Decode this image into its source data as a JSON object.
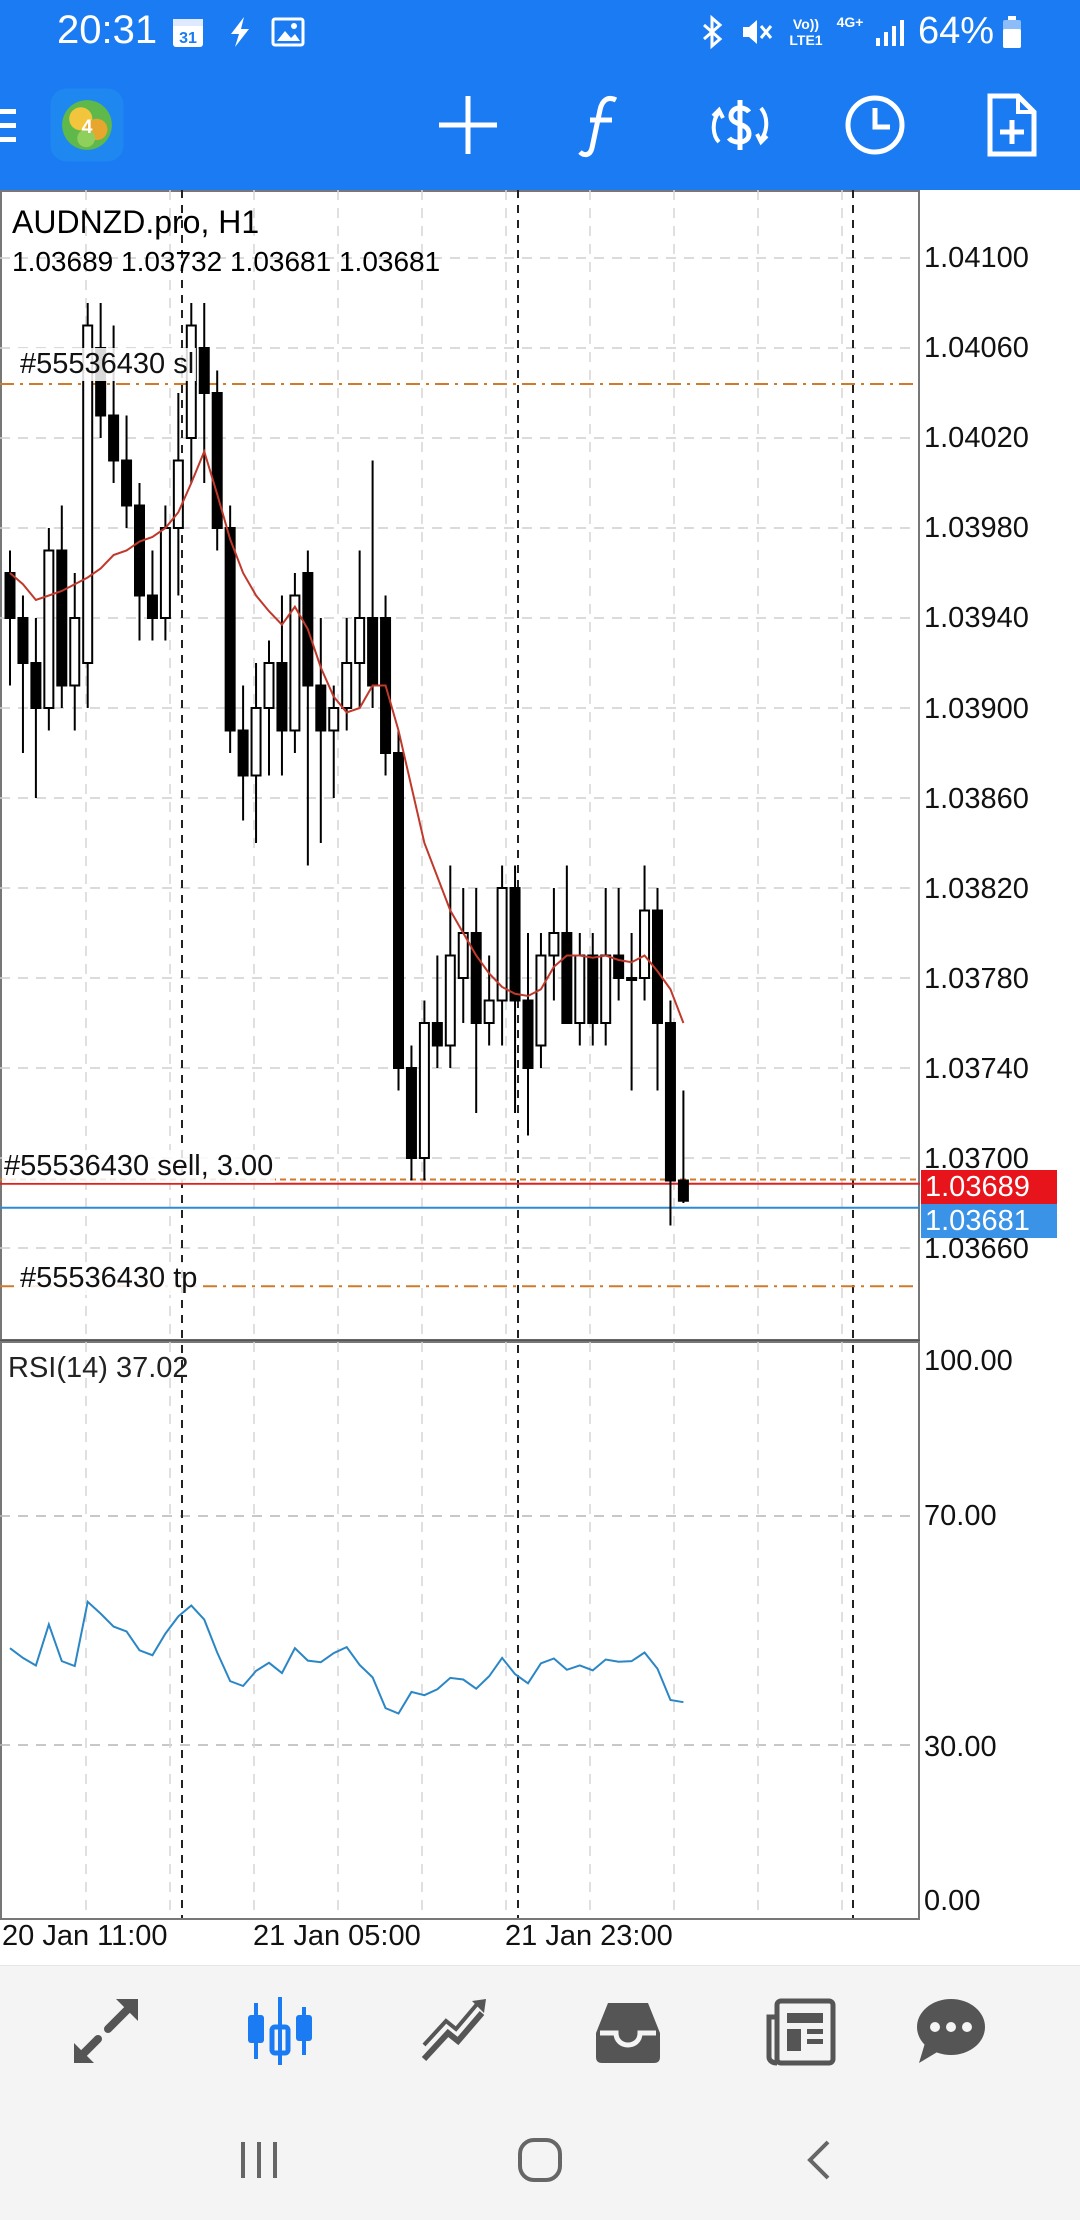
{
  "status_bar": {
    "time": "20:31",
    "calendar_day": "31",
    "volte_label": "Vo)) LTE1",
    "network_label": "4G+",
    "battery_percent": "64%",
    "icons": [
      "calendar-icon",
      "flash-icon",
      "image-icon",
      "bluetooth-icon",
      "mute-icon",
      "signal-icon",
      "battery-icon"
    ]
  },
  "toolbar": {
    "buttons": [
      "menu",
      "crosshair",
      "indicators",
      "trade",
      "timeframe",
      "new-order"
    ]
  },
  "chart": {
    "symbol": "AUDNZD.pro, H1",
    "ohlc": "1.03689 1.03732 1.03681 1.03681",
    "price_axis": [
      "1.04100",
      "1.04060",
      "1.04020",
      "1.03980",
      "1.03940",
      "1.03900",
      "1.03860",
      "1.03820",
      "1.03780",
      "1.03740",
      "1.03700",
      "1.03660"
    ],
    "bid_tag": "1.03689",
    "ask_tag": "1.03681",
    "trade_labels": {
      "sl": "#55536430 sl",
      "entry": "#55536430 sell, 3.00",
      "tp": "#55536430 tp"
    },
    "rsi_title": "RSI(14) 37.02",
    "rsi_axis": [
      "100.00",
      "70.00",
      "30.00",
      "0.00"
    ],
    "time_axis": [
      "20 Jan 11:00",
      "21 Jan 05:00",
      "21 Jan 23:00"
    ],
    "colors": {
      "bid_line": "#e02020",
      "ask_line": "#2f8ad6",
      "ma": "#c0392b",
      "rsi": "#2b86c5",
      "order_lines": "#d07a2b"
    }
  },
  "chart_data": {
    "type": "candlestick",
    "title": "AUDNZD.pro, H1",
    "ylim": [
      1.0363,
      1.0412
    ],
    "candles": [
      {
        "o": 1.0396,
        "h": 1.0397,
        "l": 1.0391,
        "c": 1.0394
      },
      {
        "o": 1.0394,
        "h": 1.0395,
        "l": 1.0388,
        "c": 1.0392
      },
      {
        "o": 1.0392,
        "h": 1.0394,
        "l": 1.0386,
        "c": 1.039
      },
      {
        "o": 1.039,
        "h": 1.0398,
        "l": 1.0389,
        "c": 1.0397
      },
      {
        "o": 1.0397,
        "h": 1.0399,
        "l": 1.039,
        "c": 1.0391
      },
      {
        "o": 1.0391,
        "h": 1.0396,
        "l": 1.0389,
        "c": 1.0394
      },
      {
        "o": 1.0392,
        "h": 1.0408,
        "l": 1.039,
        "c": 1.0407
      },
      {
        "o": 1.0406,
        "h": 1.0408,
        "l": 1.0402,
        "c": 1.0403
      },
      {
        "o": 1.0403,
        "h": 1.0407,
        "l": 1.04,
        "c": 1.0401
      },
      {
        "o": 1.0401,
        "h": 1.0403,
        "l": 1.0398,
        "c": 1.0399
      },
      {
        "o": 1.0399,
        "h": 1.04,
        "l": 1.0393,
        "c": 1.0395
      },
      {
        "o": 1.0395,
        "h": 1.0397,
        "l": 1.0393,
        "c": 1.0394
      },
      {
        "o": 1.0394,
        "h": 1.0399,
        "l": 1.0393,
        "c": 1.0398
      },
      {
        "o": 1.0398,
        "h": 1.0404,
        "l": 1.0395,
        "c": 1.0401
      },
      {
        "o": 1.0402,
        "h": 1.0408,
        "l": 1.04,
        "c": 1.0407
      },
      {
        "o": 1.0406,
        "h": 1.0408,
        "l": 1.04,
        "c": 1.0404
      },
      {
        "o": 1.0404,
        "h": 1.0405,
        "l": 1.0397,
        "c": 1.0398
      },
      {
        "o": 1.0398,
        "h": 1.0399,
        "l": 1.0388,
        "c": 1.0389
      },
      {
        "o": 1.0389,
        "h": 1.0391,
        "l": 1.0385,
        "c": 1.0387
      },
      {
        "o": 1.0387,
        "h": 1.0392,
        "l": 1.0384,
        "c": 1.039
      },
      {
        "o": 1.039,
        "h": 1.0393,
        "l": 1.0387,
        "c": 1.0392
      },
      {
        "o": 1.0392,
        "h": 1.0395,
        "l": 1.0387,
        "c": 1.0389
      },
      {
        "o": 1.0389,
        "h": 1.0396,
        "l": 1.0388,
        "c": 1.0395
      },
      {
        "o": 1.0396,
        "h": 1.0397,
        "l": 1.0383,
        "c": 1.0391
      },
      {
        "o": 1.0391,
        "h": 1.0394,
        "l": 1.0384,
        "c": 1.0389
      },
      {
        "o": 1.0389,
        "h": 1.0391,
        "l": 1.0386,
        "c": 1.039
      },
      {
        "o": 1.039,
        "h": 1.0394,
        "l": 1.0389,
        "c": 1.0392
      },
      {
        "o": 1.0392,
        "h": 1.0397,
        "l": 1.039,
        "c": 1.0394
      },
      {
        "o": 1.0394,
        "h": 1.0401,
        "l": 1.039,
        "c": 1.0391
      },
      {
        "o": 1.0394,
        "h": 1.0395,
        "l": 1.0387,
        "c": 1.0388
      },
      {
        "o": 1.0388,
        "h": 1.0389,
        "l": 1.0373,
        "c": 1.0374
      },
      {
        "o": 1.0374,
        "h": 1.0375,
        "l": 1.0369,
        "c": 1.037
      },
      {
        "o": 1.037,
        "h": 1.0377,
        "l": 1.0369,
        "c": 1.0376
      },
      {
        "o": 1.0376,
        "h": 1.0379,
        "l": 1.0374,
        "c": 1.0375
      },
      {
        "o": 1.0375,
        "h": 1.0383,
        "l": 1.0374,
        "c": 1.0379
      },
      {
        "o": 1.0378,
        "h": 1.0382,
        "l": 1.0376,
        "c": 1.038
      },
      {
        "o": 1.038,
        "h": 1.0382,
        "l": 1.0372,
        "c": 1.0376
      },
      {
        "o": 1.0376,
        "h": 1.0379,
        "l": 1.0375,
        "c": 1.0377
      },
      {
        "o": 1.0377,
        "h": 1.0383,
        "l": 1.0375,
        "c": 1.0382
      },
      {
        "o": 1.0382,
        "h": 1.0383,
        "l": 1.0372,
        "c": 1.0377
      },
      {
        "o": 1.0377,
        "h": 1.038,
        "l": 1.0371,
        "c": 1.0374
      },
      {
        "o": 1.0375,
        "h": 1.038,
        "l": 1.0374,
        "c": 1.0379
      },
      {
        "o": 1.0379,
        "h": 1.0382,
        "l": 1.0377,
        "c": 1.038
      },
      {
        "o": 1.038,
        "h": 1.0383,
        "l": 1.0376,
        "c": 1.0376
      },
      {
        "o": 1.0376,
        "h": 1.038,
        "l": 1.0375,
        "c": 1.0379
      },
      {
        "o": 1.0379,
        "h": 1.038,
        "l": 1.0375,
        "c": 1.0376
      },
      {
        "o": 1.0376,
        "h": 1.0382,
        "l": 1.0375,
        "c": 1.0379
      },
      {
        "o": 1.0379,
        "h": 1.0382,
        "l": 1.0377,
        "c": 1.0378
      },
      {
        "o": 1.0378,
        "h": 1.038,
        "l": 1.0373,
        "c": 1.0378
      },
      {
        "o": 1.0378,
        "h": 1.0383,
        "l": 1.0377,
        "c": 1.0381
      },
      {
        "o": 1.0381,
        "h": 1.0382,
        "l": 1.0373,
        "c": 1.0376
      },
      {
        "o": 1.0376,
        "h": 1.0377,
        "l": 1.0367,
        "c": 1.0369
      },
      {
        "o": 1.0369,
        "h": 1.0373,
        "l": 1.0368,
        "c": 1.03681
      }
    ],
    "ma_values": [
      1.0396,
      1.03955,
      1.03948,
      1.0395,
      1.03952,
      1.03955,
      1.03958,
      1.03962,
      1.03968,
      1.0397,
      1.03974,
      1.03976,
      1.0398,
      1.03987,
      1.04,
      1.04014,
      1.03995,
      1.03975,
      1.0396,
      1.0395,
      1.03943,
      1.03937,
      1.03945,
      1.03935,
      1.03918,
      1.03905,
      1.03898,
      1.039,
      1.0391,
      1.0391,
      1.0389,
      1.03865,
      1.0384,
      1.03825,
      1.0381,
      1.038,
      1.0379,
      1.03782,
      1.03776,
      1.03773,
      1.03772,
      1.03775,
      1.03785,
      1.0379,
      1.0379,
      1.03789,
      1.0379,
      1.03788,
      1.03787,
      1.0379,
      1.03783,
      1.03775,
      1.0376
    ],
    "rsi": {
      "ylim": [
        0,
        100
      ],
      "values": [
        47.0,
        45.2,
        43.8,
        51.4,
        44.6,
        43.7,
        55.6,
        53.4,
        51.0,
        50.1,
        46.6,
        45.7,
        49.7,
        52.9,
        54.9,
        52.3,
        46.2,
        40.9,
        40.0,
        42.8,
        44.3,
        42.4,
        47.0,
        44.7,
        44.4,
        46.1,
        47.2,
        43.9,
        41.6,
        35.9,
        34.9,
        38.9,
        38.3,
        39.4,
        41.5,
        41.2,
        39.5,
        41.8,
        45.2,
        42.2,
        40.5,
        44.2,
        45.1,
        43.0,
        43.8,
        42.9,
        44.9,
        44.5,
        44.6,
        46.2,
        43.2,
        37.4,
        37.0
      ]
    },
    "levels": {
      "sl": 1.04044,
      "entry": 1.0369,
      "bid": 1.03689,
      "ask": 1.03681,
      "tp": 1.03643
    }
  },
  "bottom_nav": {
    "items": [
      "quotes",
      "chart",
      "trade",
      "history",
      "news",
      "messages"
    ],
    "active": "chart"
  },
  "system_nav": [
    "recents",
    "home",
    "back"
  ]
}
